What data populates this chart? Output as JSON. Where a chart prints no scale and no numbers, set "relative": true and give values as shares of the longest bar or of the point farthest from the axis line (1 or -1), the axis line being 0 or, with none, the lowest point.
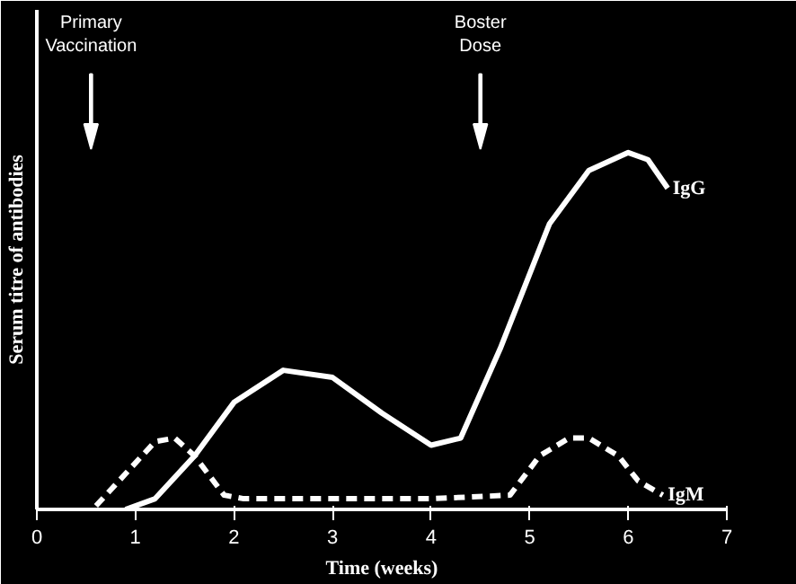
{
  "chart_data": {
    "type": "line",
    "relative": true,
    "xlabel": "Time (weeks)",
    "ylabel": "Serum titre of antibodies",
    "xlim": [
      0,
      7
    ],
    "xticks": [
      0,
      1,
      2,
      3,
      4,
      5,
      6,
      7
    ],
    "grid": false,
    "marker": "none",
    "ref_lines": [
      {
        "axis": "x",
        "value": 0.55,
        "label": "Primary\nVaccination"
      },
      {
        "axis": "x",
        "value": 4.5,
        "label": "Boster\nDose"
      }
    ],
    "series": [
      {
        "name": "IgG",
        "color": "#ffffff",
        "line_style": "solid",
        "x": [
          0.9,
          1.2,
          1.6,
          2.0,
          2.5,
          3.0,
          3.5,
          4.0,
          4.3,
          4.7,
          5.2,
          5.6,
          6.0,
          6.2,
          6.4
        ],
        "values": [
          0,
          0.03,
          0.15,
          0.3,
          0.39,
          0.37,
          0.27,
          0.18,
          0.2,
          0.45,
          0.8,
          0.95,
          1.0,
          0.98,
          0.9
        ]
      },
      {
        "name": "IgM",
        "color": "#ffffff",
        "line_style": "dashed",
        "x": [
          0.6,
          0.9,
          1.2,
          1.4,
          1.6,
          1.9,
          2.1,
          3.0,
          4.0,
          4.8,
          5.1,
          5.4,
          5.6,
          5.9,
          6.1,
          6.35
        ],
        "values": [
          0.01,
          0.1,
          0.19,
          0.2,
          0.15,
          0.04,
          0.03,
          0.03,
          0.03,
          0.04,
          0.15,
          0.2,
          0.2,
          0.15,
          0.08,
          0.04
        ]
      }
    ]
  }
}
